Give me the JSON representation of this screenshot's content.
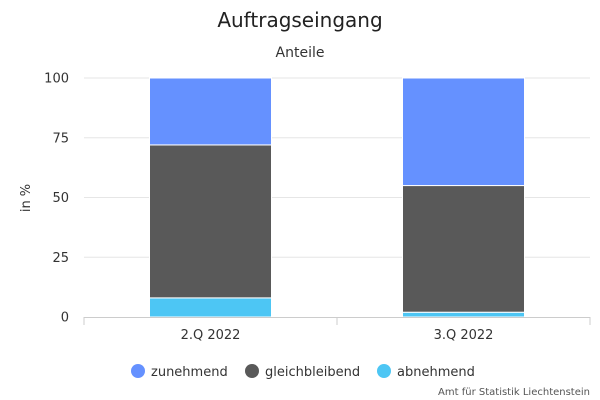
{
  "chart_data": {
    "type": "bar",
    "stacked": true,
    "title": "Auftragseingang",
    "subtitle": "Anteile",
    "xlabel": "",
    "ylabel": "in %",
    "categories": [
      "2.Q 2022",
      "3.Q 2022"
    ],
    "ylim": [
      0,
      100
    ],
    "yticks": [
      0,
      25,
      50,
      75,
      100
    ],
    "grid": true,
    "legend_position": "bottom",
    "series": [
      {
        "name": "abnehmend",
        "color": "#4dc6f4",
        "values": [
          8,
          2
        ]
      },
      {
        "name": "gleichbleibend",
        "color": "#595959",
        "values": [
          64,
          53
        ]
      },
      {
        "name": "zunehmend",
        "color": "#6591ff",
        "values": [
          28,
          45
        ]
      }
    ],
    "legend_order": [
      "zunehmend",
      "gleichbleibend",
      "abnehmend"
    ],
    "credit": "Amt für Statistik Liechtenstein"
  }
}
